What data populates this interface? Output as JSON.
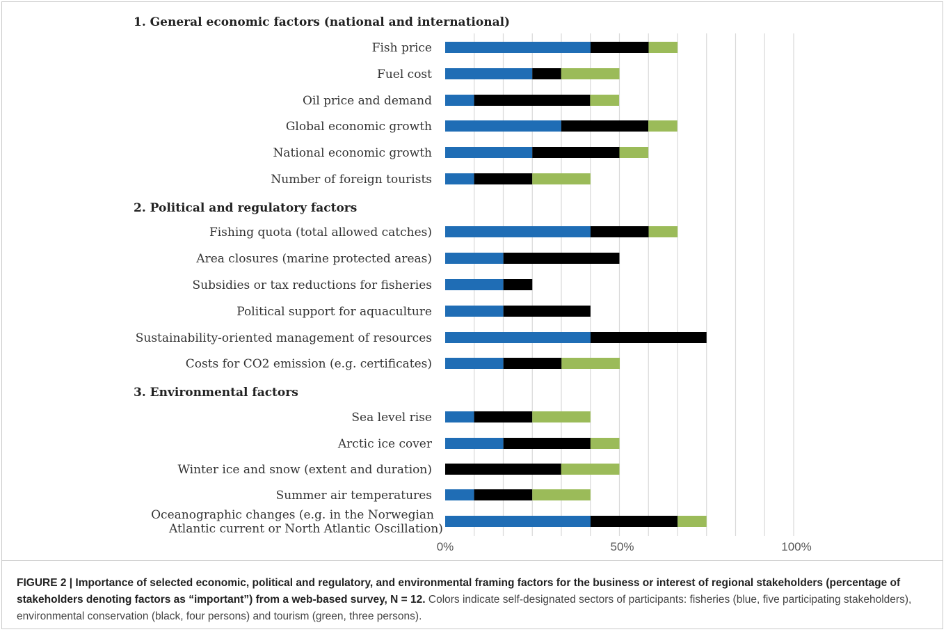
{
  "chart_data": {
    "type": "bar",
    "stacked": true,
    "orientation": "horizontal",
    "xlim": [
      0,
      100
    ],
    "x_ticks": [
      "0%",
      "50%",
      "100%"
    ],
    "x_tick_values": [
      0,
      50,
      100
    ],
    "grid": true,
    "colors": {
      "fisheries": "#1f6db5",
      "conservation": "#000000",
      "tourism": "#9bbb59"
    },
    "groups": [
      {
        "label": "1. General economic factors (national and international)",
        "items": [
          {
            "label": "Fish price",
            "values": [
              41.7,
              16.7,
              8.3
            ]
          },
          {
            "label": "Fuel cost",
            "values": [
              25,
              8.3,
              16.7
            ]
          },
          {
            "label": "Oil price and demand",
            "values": [
              8.3,
              33.3,
              8.3
            ]
          },
          {
            "label": "Global economic growth",
            "values": [
              33.3,
              25,
              8.3
            ]
          },
          {
            "label": "National economic growth",
            "values": [
              25,
              25,
              8.3
            ]
          },
          {
            "label": "Number of foreign tourists",
            "values": [
              8.3,
              16.7,
              16.7
            ]
          }
        ]
      },
      {
        "label": "2. Political and regulatory factors",
        "items": [
          {
            "label": "Fishing quota (total allowed catches)",
            "values": [
              41.7,
              16.7,
              8.3
            ]
          },
          {
            "label": "Area closures (marine protected areas)",
            "values": [
              16.7,
              33.3,
              0
            ]
          },
          {
            "label": "Subsidies or tax reductions for fisheries",
            "values": [
              16.7,
              8.3,
              0
            ]
          },
          {
            "label": "Political support for aquaculture",
            "values": [
              16.7,
              25,
              0
            ]
          },
          {
            "label": "Sustainability-oriented management of resources",
            "values": [
              41.7,
              33.3,
              0
            ]
          },
          {
            "label": "Costs for CO2 emission (e.g. certificates)",
            "values": [
              16.7,
              16.7,
              16.7
            ]
          }
        ]
      },
      {
        "label": "3. Environmental factors",
        "items": [
          {
            "label": "Sea level rise",
            "values": [
              8.3,
              16.7,
              16.7
            ]
          },
          {
            "label": "Arctic ice cover",
            "values": [
              16.7,
              25,
              8.3
            ]
          },
          {
            "label": "Winter ice and snow (extent and duration)",
            "values": [
              0,
              33.3,
              16.7
            ]
          },
          {
            "label": "Summer air temperatures",
            "values": [
              8.3,
              16.7,
              16.7
            ]
          },
          {
            "label": "Oceanographic changes (e.g. in the Norwegian Atlantic current or North Atlantic Oscillation)",
            "label_lines": [
              "Oceanographic changes (e.g. in the Norwegian",
              "Atlantic current or North Atlantic Oscillation)"
            ],
            "values": [
              41.7,
              25,
              8.3
            ]
          }
        ]
      }
    ]
  },
  "caption": {
    "head": "FIGURE 2 | Importance of selected economic, political and regulatory, and environmental framing factors for the business or interest of regional stakeholders (percentage of stakeholders denoting factors as “important”) from a web-based survey, N = 12.",
    "body": " Colors indicate self-designated sectors of participants: fisheries (blue, five participating stakeholders), environmental conservation (black, four persons) and tourism (green, three persons)."
  }
}
